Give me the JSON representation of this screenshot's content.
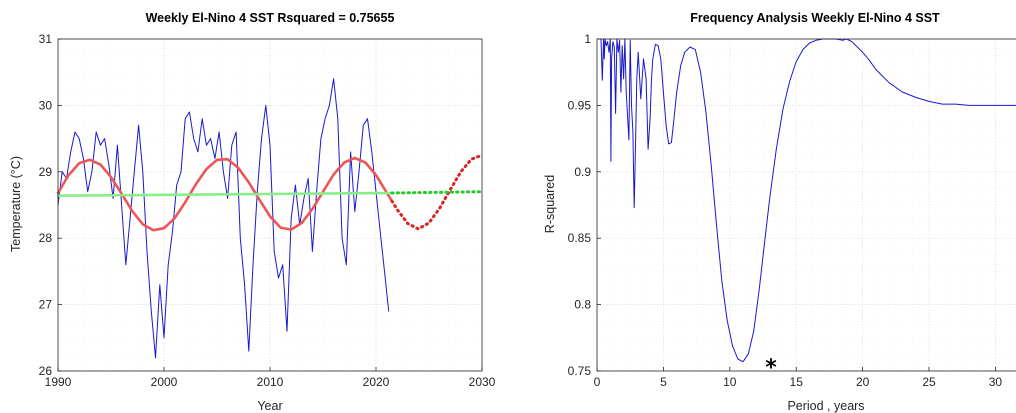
{
  "chart_data": [
    {
      "type": "line",
      "title": "Weekly El-Nino 4 SST   Rsquared = 0.75655",
      "xlabel": "Year",
      "ylabel": "Temperature (°C)",
      "xlim": [
        1990,
        2030
      ],
      "ylim": [
        26,
        31
      ],
      "xticks": [
        "1990",
        "2000",
        "2010",
        "2020",
        "2030"
      ],
      "yticks": [
        "26",
        "27",
        "28",
        "29",
        "30",
        "31"
      ],
      "grid": true,
      "series": [
        {
          "color": "#1a1acc",
          "style": "solid",
          "x": [
            1990.0,
            1990.4,
            1990.8,
            1991.2,
            1991.6,
            1992.0,
            1992.4,
            1992.8,
            1993.2,
            1993.6,
            1994.0,
            1994.4,
            1994.8,
            1995.2,
            1995.6,
            1996.0,
            1996.4,
            1996.8,
            1997.2,
            1997.6,
            1998.0,
            1998.4,
            1998.8,
            1999.2,
            1999.6,
            2000.0,
            2000.4,
            2000.8,
            2001.2,
            2001.6,
            2002.0,
            2002.4,
            2002.8,
            2003.2,
            2003.6,
            2004.0,
            2004.4,
            2004.8,
            2005.2,
            2005.6,
            2006.0,
            2006.4,
            2006.8,
            2007.2,
            2007.6,
            2008.0,
            2008.4,
            2008.8,
            2009.2,
            2009.6,
            2010.0,
            2010.4,
            2010.8,
            2011.2,
            2011.6,
            2012.0,
            2012.4,
            2012.8,
            2013.2,
            2013.6,
            2014.0,
            2014.4,
            2014.8,
            2015.2,
            2015.6,
            2016.0,
            2016.4,
            2016.8,
            2017.2,
            2017.6,
            2018.0,
            2018.4,
            2018.8,
            2019.2,
            2019.6,
            2020.0,
            2020.4,
            2020.8,
            2021.2
          ],
          "y": [
            28.5,
            29.0,
            28.9,
            29.3,
            29.6,
            29.5,
            29.2,
            28.7,
            29.0,
            29.6,
            29.4,
            29.5,
            29.1,
            28.6,
            29.4,
            28.5,
            27.6,
            28.3,
            29.0,
            29.7,
            29.0,
            27.8,
            26.9,
            26.2,
            27.3,
            26.5,
            27.6,
            28.1,
            28.8,
            29.0,
            29.8,
            29.9,
            29.5,
            29.3,
            29.8,
            29.4,
            29.5,
            29.2,
            29.6,
            29.0,
            28.6,
            29.4,
            29.6,
            28.0,
            27.3,
            26.3,
            27.6,
            28.7,
            29.5,
            30.0,
            29.4,
            27.8,
            27.4,
            27.6,
            26.6,
            28.3,
            28.8,
            28.2,
            28.6,
            28.9,
            27.8,
            28.7,
            29.5,
            29.8,
            30.0,
            30.4,
            29.8,
            28.0,
            27.6,
            29.3,
            28.4,
            29.0,
            29.7,
            29.8,
            29.3,
            28.7,
            28.1,
            27.5,
            26.9
          ]
        },
        {
          "color": "#ee5555",
          "style": "solid",
          "x": [
            1990.0,
            1991.0,
            1992.0,
            1993.0,
            1994.0,
            1995.0,
            1996.0,
            1997.0,
            1998.0,
            1999.0,
            2000.0,
            2001.0,
            2002.0,
            2003.0,
            2004.0,
            2005.0,
            2006.0,
            2007.0,
            2008.0,
            2009.0,
            2010.0,
            2011.0,
            2012.0,
            2013.0,
            2014.0,
            2015.0,
            2016.0,
            2017.0,
            2018.0,
            2019.0,
            2020.0,
            2021.0,
            2021.5
          ],
          "y": [
            28.68,
            28.95,
            29.13,
            29.18,
            29.11,
            28.92,
            28.67,
            28.41,
            28.21,
            28.12,
            28.15,
            28.3,
            28.54,
            28.81,
            29.04,
            29.18,
            29.19,
            29.06,
            28.84,
            28.58,
            28.33,
            28.16,
            28.13,
            28.23,
            28.44,
            28.7,
            28.96,
            29.14,
            29.21,
            29.14,
            28.95,
            28.69,
            28.56
          ]
        },
        {
          "color": "#dd2222",
          "style": "dotted",
          "x": [
            2021.5,
            2022.0,
            2023.0,
            2024.0,
            2025.0,
            2026.0,
            2027.0,
            2028.0,
            2029.0,
            2030.0
          ],
          "y": [
            28.56,
            28.43,
            28.22,
            28.14,
            28.23,
            28.45,
            28.73,
            29.0,
            29.19,
            29.25
          ]
        },
        {
          "color": "#88ee88",
          "style": "solid",
          "x": [
            1990.0,
            2021.5
          ],
          "y": [
            28.64,
            28.68
          ]
        },
        {
          "color": "#22cc22",
          "style": "dotted",
          "x": [
            2021.5,
            2030.0
          ],
          "y": [
            28.68,
            28.7
          ]
        }
      ]
    },
    {
      "type": "line",
      "title": "Frequency Analysis  Weekly El-Nino 4 SST",
      "xlabel": "Period , years",
      "ylabel": "R-squared",
      "xlim": [
        0,
        32
      ],
      "ylim": [
        0.75,
        1.0
      ],
      "xticks": [
        "0",
        "5",
        "10",
        "15",
        "20",
        "25",
        "30"
      ],
      "yticks": [
        "0.75",
        "0.8",
        "0.85",
        "0.9",
        "0.95",
        "1"
      ],
      "grid": true,
      "marker": {
        "label": "*",
        "x": 13.1,
        "y": 0.7555
      },
      "series": [
        {
          "color": "#1a1acc",
          "style": "solid",
          "x": [
            0.3,
            0.4,
            0.5,
            0.55,
            0.6,
            0.7,
            0.8,
            0.9,
            1.0,
            1.05,
            1.1,
            1.2,
            1.3,
            1.4,
            1.5,
            1.6,
            1.7,
            1.8,
            1.9,
            2.0,
            2.1,
            2.2,
            2.4,
            2.5,
            2.6,
            2.7,
            2.8,
            2.9,
            3.0,
            3.1,
            3.3,
            3.5,
            3.7,
            3.85,
            4.0,
            4.1,
            4.2,
            4.4,
            4.6,
            4.8,
            5.0,
            5.2,
            5.4,
            5.6,
            5.8,
            6.0,
            6.3,
            6.6,
            7.0,
            7.4,
            7.8,
            8.2,
            8.6,
            9.0,
            9.4,
            9.8,
            10.2,
            10.6,
            11.0,
            11.4,
            11.8,
            12.2,
            12.6,
            13.0,
            13.5,
            14.0,
            14.5,
            15.0,
            15.5,
            16.0,
            16.5,
            17.0,
            17.5,
            18.0,
            18.5,
            18.8,
            19.2,
            19.6,
            20.0,
            20.5,
            21.0,
            22.0,
            23.0,
            24.0,
            25.0,
            26.0,
            27.0,
            28.0,
            29.0,
            30.0,
            31.0,
            32.0
          ],
          "y": [
            1.0,
            0.969,
            1.0,
            0.985,
            1.0,
            0.995,
            0.998,
            0.99,
            1.0,
            0.908,
            0.985,
            0.998,
            0.994,
            0.944,
            1.0,
            0.99,
            0.999,
            0.96,
            0.995,
            0.97,
            1.0,
            0.96,
            0.924,
            0.999,
            0.95,
            0.93,
            0.873,
            0.92,
            0.97,
            0.99,
            0.955,
            0.985,
            0.97,
            0.917,
            0.94,
            0.97,
            0.985,
            0.996,
            0.995,
            0.985,
            0.96,
            0.935,
            0.921,
            0.922,
            0.94,
            0.96,
            0.98,
            0.99,
            0.994,
            0.992,
            0.975,
            0.945,
            0.905,
            0.86,
            0.818,
            0.788,
            0.769,
            0.759,
            0.757,
            0.763,
            0.78,
            0.81,
            0.845,
            0.88,
            0.917,
            0.947,
            0.968,
            0.983,
            0.992,
            0.997,
            0.999,
            1.0,
            1.0,
            1.0,
            0.999,
            1.0,
            0.998,
            0.994,
            0.99,
            0.984,
            0.977,
            0.967,
            0.96,
            0.956,
            0.953,
            0.951,
            0.951,
            0.95,
            0.95,
            0.95,
            0.95,
            0.95
          ]
        }
      ]
    }
  ]
}
